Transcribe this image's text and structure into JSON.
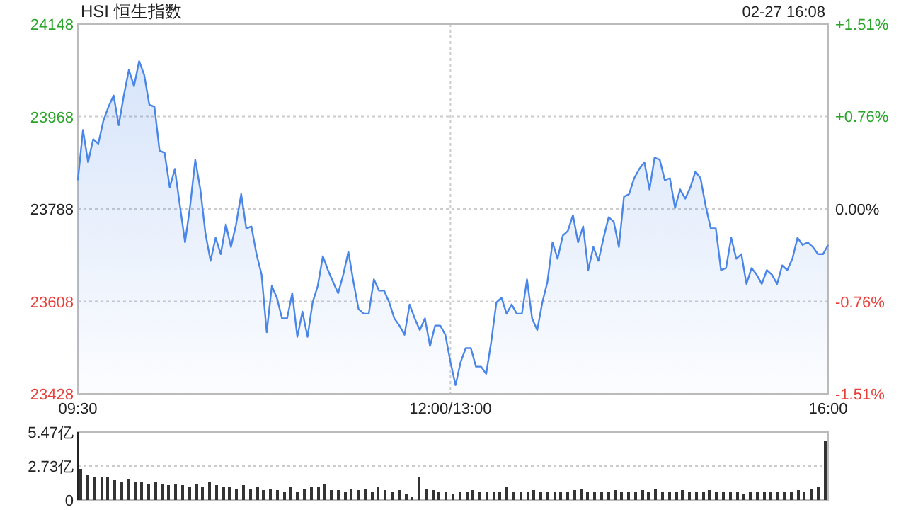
{
  "chart_data": [
    {
      "type": "area",
      "title": "HSI 恒生指数",
      "annotations": [
        "02-27 16:08"
      ],
      "color": "#4a86e8",
      "grid": true,
      "categories": [
        "09:30",
        null,
        null,
        null,
        null,
        null,
        null,
        null,
        null,
        null,
        null,
        null,
        null,
        null,
        null,
        null,
        null,
        null,
        null,
        null,
        null,
        null,
        null,
        null,
        null,
        null,
        null,
        null,
        null,
        null,
        null,
        null,
        null,
        null,
        null,
        null,
        null,
        null,
        null,
        null,
        null,
        null,
        null,
        null,
        null,
        null,
        null,
        null,
        null,
        null,
        null,
        null,
        null,
        null,
        null,
        null,
        null,
        null,
        null,
        null,
        null,
        null,
        null,
        null,
        null,
        null,
        null,
        null,
        null,
        null,
        null,
        null,
        null,
        "12:00/13:00",
        null,
        null,
        null,
        null,
        null,
        null,
        null,
        null,
        null,
        null,
        null,
        null,
        null,
        null,
        null,
        null,
        null,
        null,
        null,
        null,
        null,
        null,
        null,
        null,
        null,
        null,
        null,
        null,
        null,
        null,
        null,
        null,
        null,
        null,
        null,
        null,
        null,
        null,
        null,
        null,
        null,
        null,
        null,
        null,
        null,
        null,
        null,
        null,
        null,
        null,
        null,
        null,
        null,
        null,
        null,
        null,
        null,
        null,
        null,
        null,
        null,
        null,
        null,
        null,
        null,
        null,
        null,
        null,
        null,
        null,
        null,
        null,
        null,
        "16:00"
      ],
      "values": [
        23844,
        23942,
        23879,
        23924,
        23915,
        23960,
        23987,
        24009,
        23951,
        24009,
        24059,
        24027,
        24076,
        24049,
        23991,
        23987,
        23902,
        23897,
        23830,
        23866,
        23794,
        23723,
        23794,
        23884,
        23826,
        23740,
        23687,
        23732,
        23700,
        23758,
        23714,
        23758,
        23817,
        23750,
        23754,
        23700,
        23660,
        23548,
        23638,
        23615,
        23575,
        23575,
        23624,
        23539,
        23588,
        23539,
        23606,
        23638,
        23696,
        23669,
        23646,
        23624,
        23660,
        23705,
        23646,
        23593,
        23584,
        23584,
        23651,
        23629,
        23629,
        23606,
        23575,
        23561,
        23543,
        23602,
        23575,
        23552,
        23575,
        23521,
        23561,
        23561,
        23543,
        23490,
        23445,
        23490,
        23517,
        23517,
        23481,
        23481,
        23467,
        23530,
        23606,
        23615,
        23584,
        23602,
        23584,
        23584,
        23651,
        23575,
        23552,
        23606,
        23646,
        23723,
        23691,
        23736,
        23745,
        23776,
        23723,
        23754,
        23669,
        23714,
        23687,
        23732,
        23772,
        23763,
        23714,
        23812,
        23817,
        23848,
        23866,
        23879,
        23826,
        23888,
        23884,
        23844,
        23848,
        23790,
        23826,
        23808,
        23830,
        23861,
        23848,
        23794,
        23750,
        23750,
        23669,
        23673,
        23732,
        23691,
        23700,
        23642,
        23673,
        23660,
        23642,
        23669,
        23660,
        23642,
        23678,
        23669,
        23691,
        23732,
        23718,
        23723,
        23714,
        23700,
        23700,
        23718
      ],
      "ylim": [
        23428,
        24148
      ],
      "yticks": [
        23428,
        23608,
        23788,
        23968,
        24148
      ],
      "y2lim": [
        -1.51,
        1.51
      ],
      "y2ticks": [
        {
          "value": -1.51,
          "label": "-1.51%"
        },
        {
          "value": -0.76,
          "label": "-0.76%"
        },
        {
          "value": 0,
          "label": "0.00%"
        },
        {
          "value": 0.76,
          "label": "+0.76%"
        },
        {
          "value": 1.51,
          "label": "+1.51%"
        }
      ]
    },
    {
      "type": "bar",
      "color": "#333333",
      "grid": "y",
      "tick_labels": "y",
      "categories": [
        null,
        null,
        null,
        null,
        null,
        null,
        null,
        null,
        null,
        null,
        null,
        null,
        null,
        null,
        null,
        null,
        null,
        null,
        null,
        null,
        null,
        null,
        null,
        null,
        null,
        null,
        null,
        null,
        null,
        null,
        null,
        null,
        null,
        null,
        null,
        null,
        null,
        null,
        null,
        null,
        null,
        null,
        null,
        null,
        null,
        null,
        null,
        null,
        null,
        null,
        null,
        null,
        null,
        null,
        null,
        null,
        null,
        null,
        null,
        null,
        null,
        null,
        null,
        null,
        null,
        null,
        null,
        null,
        null,
        null,
        null,
        null,
        null,
        null,
        null,
        null,
        null,
        null,
        null,
        null,
        null,
        null,
        null,
        null,
        null,
        null,
        null,
        null,
        null,
        null,
        null,
        null,
        null,
        null,
        null,
        null,
        null,
        null,
        null,
        null,
        null,
        null,
        null,
        null,
        null,
        null,
        null,
        null,
        null,
        null,
        null
      ],
      "values": [
        2.5,
        2.0,
        1.9,
        1.8,
        1.9,
        1.6,
        1.5,
        1.7,
        1.4,
        1.5,
        1.3,
        1.4,
        1.3,
        1.2,
        1.3,
        1.2,
        1.1,
        1.3,
        1.1,
        1.4,
        1.2,
        1.0,
        1.1,
        0.9,
        1.2,
        0.9,
        1.1,
        0.8,
        0.9,
        0.8,
        0.7,
        1.1,
        0.6,
        0.9,
        1.0,
        1.1,
        1.3,
        0.8,
        0.8,
        0.7,
        0.9,
        0.8,
        0.9,
        0.7,
        1.0,
        0.8,
        0.6,
        0.8,
        0.5,
        0.3,
        1.9,
        0.9,
        0.8,
        0.6,
        0.7,
        0.5,
        0.7,
        0.6,
        0.8,
        0.6,
        0.7,
        0.6,
        0.7,
        1.0,
        0.6,
        0.7,
        0.6,
        0.8,
        0.6,
        0.7,
        0.6,
        0.7,
        0.6,
        0.8,
        0.9,
        0.6,
        0.7,
        0.6,
        0.7,
        0.8,
        0.6,
        0.7,
        0.6,
        0.8,
        0.6,
        0.9,
        0.6,
        0.7,
        0.6,
        0.8,
        0.6,
        0.7,
        0.6,
        0.8,
        0.6,
        0.7,
        0.6,
        0.7,
        0.5,
        0.6,
        0.7,
        0.6,
        0.7,
        0.6,
        0.7,
        0.6,
        0.8,
        0.7,
        0.9,
        1.1,
        4.8
      ],
      "ylim": [
        0,
        5.47
      ],
      "yticks": [
        {
          "value": 0,
          "label": "0"
        },
        {
          "value": 2.73,
          "label": "2.73亿"
        },
        {
          "value": 5.47,
          "label": "5.47亿"
        }
      ]
    }
  ]
}
